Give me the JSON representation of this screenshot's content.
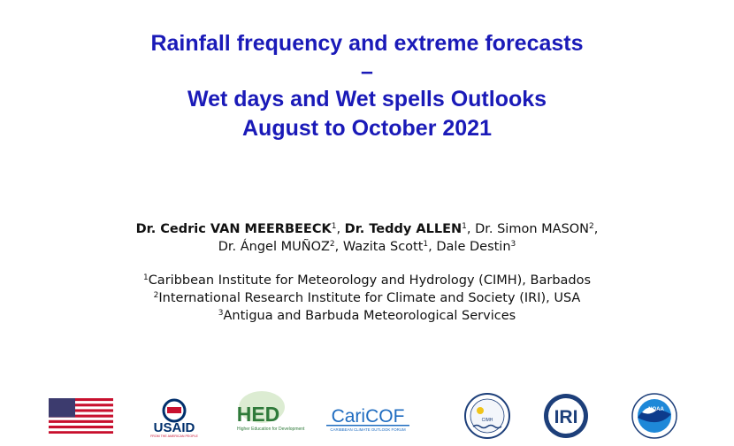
{
  "title": {
    "lines": [
      "Rainfall frequency and extreme forecasts",
      "–",
      "Wet days and Wet spells Outlooks",
      "August to October 2021"
    ]
  },
  "authors": {
    "separator": ", ",
    "lines": [
      [
        {
          "name": "Dr. Cedric VAN MEERBEECK",
          "sup": "1",
          "bold": true
        },
        {
          "name": "Dr. Teddy ALLEN",
          "sup": "1",
          "bold": true
        },
        {
          "name": "Dr. Simon MASON",
          "sup": "2",
          "bold": false
        }
      ],
      [
        {
          "name": "Dr. Ángel MUÑOZ",
          "sup": "2",
          "bold": false
        },
        {
          "name": "Wazita Scott",
          "sup": "1",
          "bold": false
        },
        {
          "name": "Dale Destin",
          "sup": "3",
          "bold": false
        }
      ]
    ]
  },
  "affiliations": [
    {
      "sup": "1",
      "text": "Caribbean Institute for Meteorology and Hydrology (CIMH), Barbados"
    },
    {
      "sup": "2",
      "text": "International Research Institute for Climate and Society (IRI), USA"
    },
    {
      "sup": "3",
      "text": "Antigua and Barbuda Meteorological Services"
    }
  ],
  "logos": {
    "usaid": {
      "name": "USAID",
      "tagline": "FROM THE AMERICAN PEOPLE"
    },
    "hed": {
      "name": "HED",
      "tagline": "Higher Education for Development"
    },
    "caricof": {
      "name": "CariCOF",
      "tagline": "CARIBBEAN CLIMATE OUTLOOK FORUM"
    },
    "cimh": {
      "name": "CIMH"
    },
    "iri": {
      "name": "IRI"
    },
    "noaa": {
      "name": "NOAA"
    }
  }
}
